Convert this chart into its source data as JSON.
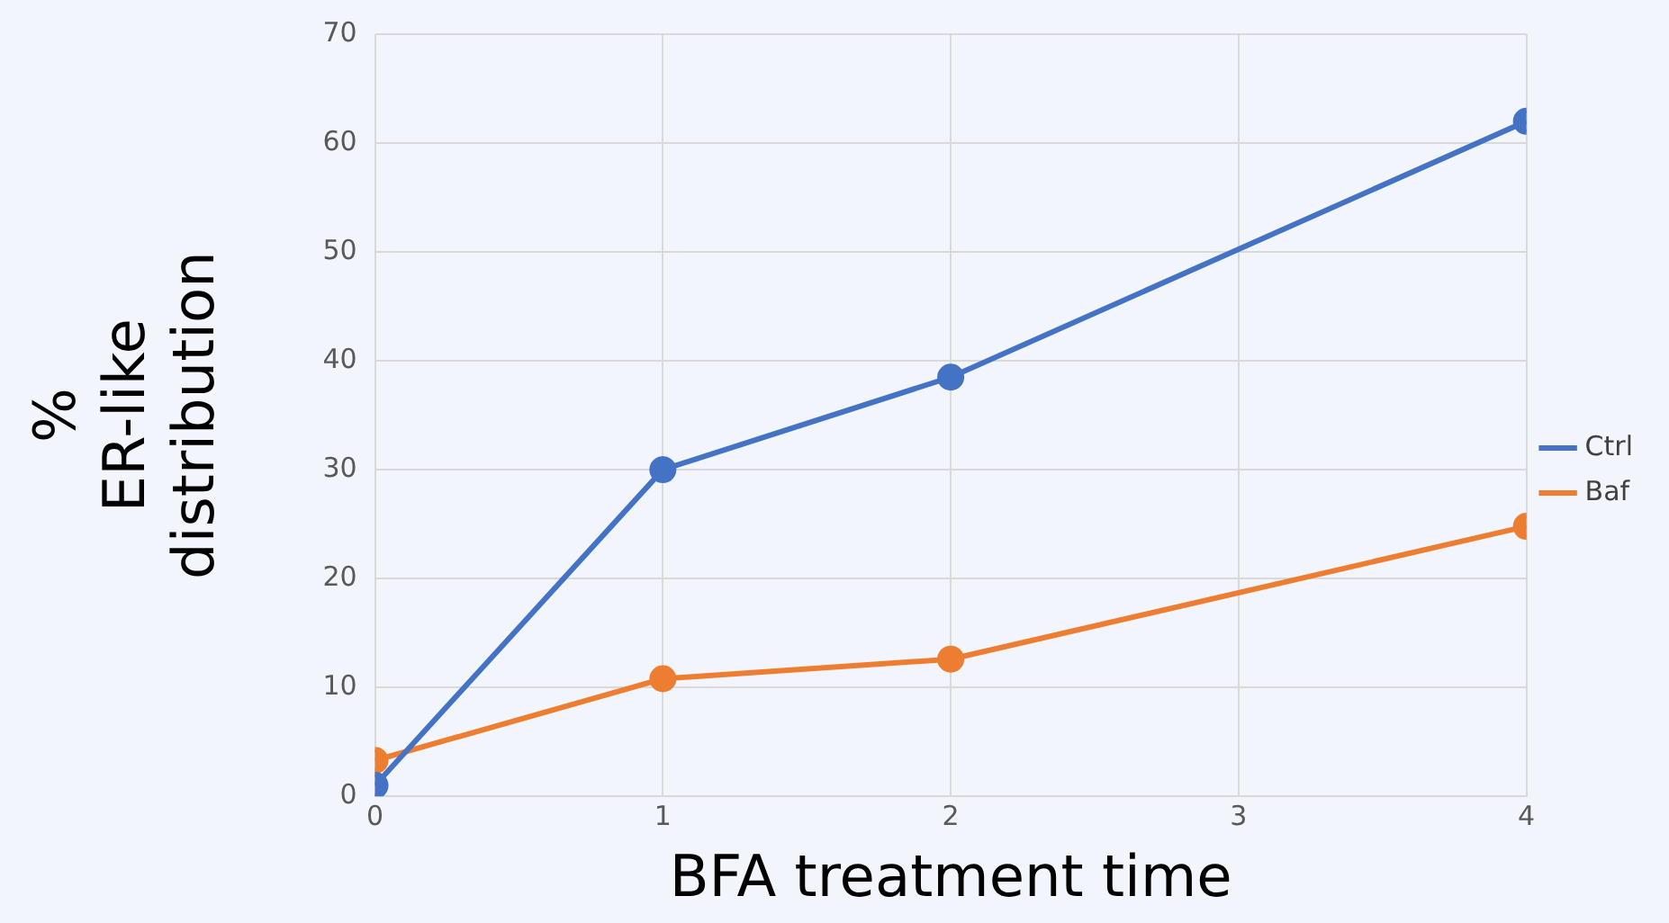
{
  "chart_data": {
    "type": "line",
    "xlabel": "BFA treatment time",
    "ylabel": "% ER-like distribution",
    "x": [
      0,
      1,
      2,
      4
    ],
    "series": [
      {
        "name": "Ctrl",
        "color": "#4472c4",
        "values": [
          1,
          30,
          38.5,
          62
        ]
      },
      {
        "name": "Baf",
        "color": "#ed7d31",
        "values": [
          3.3,
          10.8,
          12.6,
          24.8
        ]
      }
    ],
    "xlim": [
      0,
      4
    ],
    "xticks": [
      0,
      1,
      2,
      3,
      4
    ],
    "ylim": [
      0,
      70
    ],
    "yticks": [
      0,
      10,
      20,
      30,
      40,
      50,
      60,
      70
    ],
    "grid": true,
    "legend": "right",
    "marker": "circle",
    "line_style": "solid"
  }
}
